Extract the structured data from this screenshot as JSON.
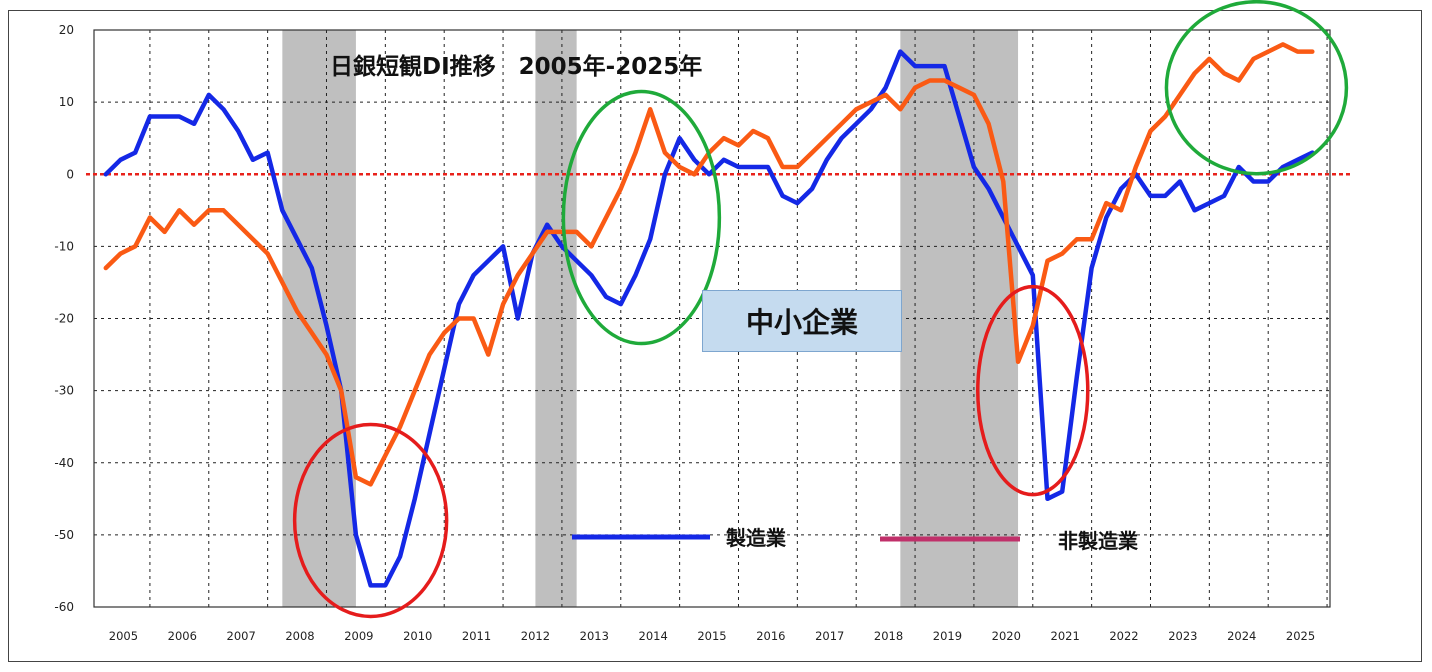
{
  "chart_data": {
    "type": "line",
    "title": "日銀短観DI推移　2005年-2025年",
    "inset_label": "中小企業",
    "x_tick_labels": [
      "2005",
      "2006",
      "2007",
      "2008",
      "2009",
      "2010",
      "2011",
      "2012",
      "2013",
      "2014",
      "2015",
      "2016",
      "2017",
      "2018",
      "2019",
      "2020",
      "2021",
      "2022",
      "2023",
      "2024",
      "2025"
    ],
    "y_tick_labels": [
      "20",
      "10",
      "0",
      "-10",
      "-20",
      "-30",
      "-40",
      "-50",
      "-60"
    ],
    "ylim": [
      -60,
      20
    ],
    "xlim": [
      2004.8,
      2025.8
    ],
    "grid": true,
    "recession_bands": [
      [
        2008.0,
        2009.25
      ],
      [
        2012.3,
        2013.0
      ],
      [
        2018.5,
        2020.5
      ]
    ],
    "zero_line_color": "#e8221b",
    "series": [
      {
        "name": "製造業",
        "color": "#1428e6",
        "points": [
          [
            2005.0,
            0
          ],
          [
            2005.25,
            2
          ],
          [
            2005.5,
            3
          ],
          [
            2005.75,
            8
          ],
          [
            2006.0,
            8
          ],
          [
            2006.25,
            8
          ],
          [
            2006.5,
            7
          ],
          [
            2006.75,
            11
          ],
          [
            2007.0,
            9
          ],
          [
            2007.25,
            6
          ],
          [
            2007.5,
            2
          ],
          [
            2007.75,
            3
          ],
          [
            2008.0,
            -5
          ],
          [
            2008.25,
            -9
          ],
          [
            2008.5,
            -13
          ],
          [
            2008.75,
            -21
          ],
          [
            2009.0,
            -30
          ],
          [
            2009.25,
            -50
          ],
          [
            2009.5,
            -57
          ],
          [
            2009.75,
            -57
          ],
          [
            2010.0,
            -53
          ],
          [
            2010.25,
            -45
          ],
          [
            2010.5,
            -36
          ],
          [
            2010.75,
            -27
          ],
          [
            2011.0,
            -18
          ],
          [
            2011.25,
            -14
          ],
          [
            2011.5,
            -12
          ],
          [
            2011.75,
            -10
          ],
          [
            2012.0,
            -20
          ],
          [
            2012.25,
            -11
          ],
          [
            2012.5,
            -7
          ],
          [
            2012.75,
            -10
          ],
          [
            2013.0,
            -12
          ],
          [
            2013.25,
            -14
          ],
          [
            2013.5,
            -17
          ],
          [
            2013.75,
            -18
          ],
          [
            2014.0,
            -14
          ],
          [
            2014.25,
            -9
          ],
          [
            2014.5,
            0
          ],
          [
            2014.75,
            5
          ],
          [
            2015.0,
            2
          ],
          [
            2015.25,
            0
          ],
          [
            2015.5,
            2
          ],
          [
            2015.75,
            1
          ],
          [
            2016.0,
            1
          ],
          [
            2016.25,
            1
          ],
          [
            2016.5,
            -3
          ],
          [
            2016.75,
            -4
          ],
          [
            2017.0,
            -2
          ],
          [
            2017.25,
            2
          ],
          [
            2017.5,
            5
          ],
          [
            2017.75,
            7
          ],
          [
            2018.0,
            9
          ],
          [
            2018.25,
            12
          ],
          [
            2018.5,
            17
          ],
          [
            2018.75,
            15
          ],
          [
            2019.0,
            15
          ],
          [
            2019.25,
            15
          ],
          [
            2019.5,
            8
          ],
          [
            2019.75,
            1
          ],
          [
            2020.0,
            -2
          ],
          [
            2020.25,
            -6
          ],
          [
            2020.5,
            -10
          ],
          [
            2020.75,
            -14
          ],
          [
            2021.0,
            -45
          ],
          [
            2021.25,
            -44
          ],
          [
            2021.5,
            -28
          ],
          [
            2021.75,
            -13
          ],
          [
            2022.0,
            -6
          ],
          [
            2022.25,
            -2
          ],
          [
            2022.5,
            0
          ],
          [
            2022.75,
            -3
          ],
          [
            2023.0,
            -3
          ],
          [
            2023.25,
            -1
          ],
          [
            2023.5,
            -5
          ],
          [
            2023.75,
            -4
          ],
          [
            2024.0,
            -3
          ],
          [
            2024.25,
            1
          ],
          [
            2024.5,
            -1
          ],
          [
            2024.75,
            -1
          ],
          [
            2025.0,
            1
          ],
          [
            2025.25,
            2
          ],
          [
            2025.5,
            3
          ]
        ]
      },
      {
        "name": "非製造業",
        "legend_color": "#c0306a",
        "color": "#fa5a14",
        "points": [
          [
            2005.0,
            -13
          ],
          [
            2005.25,
            -11
          ],
          [
            2005.5,
            -10
          ],
          [
            2005.75,
            -6
          ],
          [
            2006.0,
            -8
          ],
          [
            2006.25,
            -5
          ],
          [
            2006.5,
            -7
          ],
          [
            2006.75,
            -5
          ],
          [
            2007.0,
            -5
          ],
          [
            2007.25,
            -7
          ],
          [
            2007.5,
            -9
          ],
          [
            2007.75,
            -11
          ],
          [
            2008.0,
            -15
          ],
          [
            2008.25,
            -19
          ],
          [
            2008.5,
            -22
          ],
          [
            2008.75,
            -25
          ],
          [
            2009.0,
            -30
          ],
          [
            2009.25,
            -42
          ],
          [
            2009.5,
            -43
          ],
          [
            2009.75,
            -39
          ],
          [
            2010.0,
            -35
          ],
          [
            2010.25,
            -30
          ],
          [
            2010.5,
            -25
          ],
          [
            2010.75,
            -22
          ],
          [
            2011.0,
            -20
          ],
          [
            2011.25,
            -20
          ],
          [
            2011.5,
            -25
          ],
          [
            2011.75,
            -18
          ],
          [
            2012.0,
            -14
          ],
          [
            2012.25,
            -11
          ],
          [
            2012.5,
            -8
          ],
          [
            2012.75,
            -8
          ],
          [
            2013.0,
            -8
          ],
          [
            2013.25,
            -10
          ],
          [
            2013.5,
            -6
          ],
          [
            2013.75,
            -2
          ],
          [
            2014.0,
            3
          ],
          [
            2014.25,
            9
          ],
          [
            2014.5,
            3
          ],
          [
            2014.75,
            1
          ],
          [
            2015.0,
            0
          ],
          [
            2015.25,
            3
          ],
          [
            2015.5,
            5
          ],
          [
            2015.75,
            4
          ],
          [
            2016.0,
            6
          ],
          [
            2016.25,
            5
          ],
          [
            2016.5,
            1
          ],
          [
            2016.75,
            1
          ],
          [
            2017.0,
            3
          ],
          [
            2017.25,
            5
          ],
          [
            2017.5,
            7
          ],
          [
            2017.75,
            9
          ],
          [
            2018.0,
            10
          ],
          [
            2018.25,
            11
          ],
          [
            2018.5,
            9
          ],
          [
            2018.75,
            12
          ],
          [
            2019.0,
            13
          ],
          [
            2019.25,
            13
          ],
          [
            2019.5,
            12
          ],
          [
            2019.75,
            11
          ],
          [
            2020.0,
            7
          ],
          [
            2020.25,
            -1
          ],
          [
            2020.5,
            -26
          ],
          [
            2020.75,
            -21
          ],
          [
            2021.0,
            -12
          ],
          [
            2021.25,
            -11
          ],
          [
            2021.5,
            -9
          ],
          [
            2021.75,
            -9
          ],
          [
            2022.0,
            -4
          ],
          [
            2022.25,
            -5
          ],
          [
            2022.5,
            1
          ],
          [
            2022.75,
            6
          ],
          [
            2023.0,
            8
          ],
          [
            2023.25,
            11
          ],
          [
            2023.5,
            14
          ],
          [
            2023.75,
            16
          ],
          [
            2024.0,
            14
          ],
          [
            2024.25,
            13
          ],
          [
            2024.5,
            16
          ],
          [
            2024.75,
            17
          ],
          [
            2025.0,
            18
          ],
          [
            2025.25,
            17
          ],
          [
            2025.5,
            17
          ]
        ]
      }
    ],
    "highlights": [
      {
        "color": "#e51c1c",
        "center": [
          2009.5,
          -48
        ]
      },
      {
        "color": "#1faa3a",
        "center": [
          2014.1,
          -6
        ]
      },
      {
        "color": "#e51c1c",
        "center": [
          2020.75,
          -30
        ]
      },
      {
        "color": "#1faa3a",
        "center": [
          2024.55,
          12
        ]
      }
    ]
  }
}
